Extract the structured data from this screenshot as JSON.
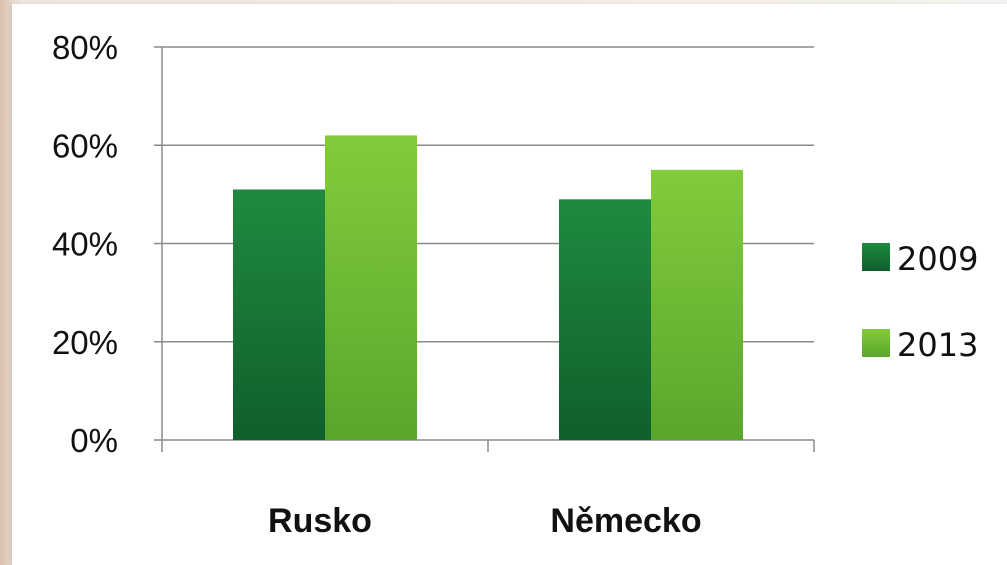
{
  "chart_data": {
    "type": "bar",
    "categories": [
      "Rusko",
      "Německo"
    ],
    "series": [
      {
        "name": "2009",
        "values": [
          51,
          49
        ],
        "color": "#1f7a3a"
      },
      {
        "name": "2013",
        "values": [
          62,
          55
        ],
        "color": "#6fbf3a"
      }
    ],
    "y_ticks": [
      "0%",
      "20%",
      "40%",
      "60%",
      "80%"
    ],
    "ylim": [
      0,
      80
    ],
    "y_unit": "%",
    "grid": true,
    "legend_position": "right",
    "title": "",
    "xlabel": "",
    "ylabel": ""
  }
}
